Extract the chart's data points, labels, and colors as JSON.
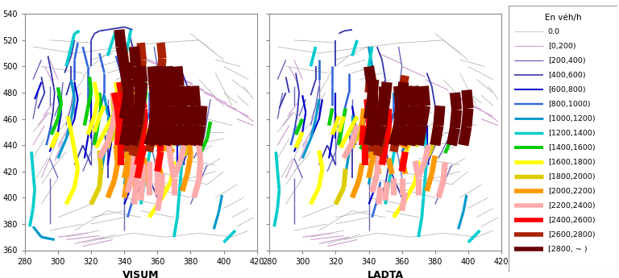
{
  "title_left": "VISUM",
  "title_right": "LADTA",
  "legend_title": "En véh/h",
  "xlim": [
    280,
    420
  ],
  "ylim": [
    360,
    540
  ],
  "xticks": [
    280,
    300,
    320,
    340,
    360,
    380,
    400,
    420
  ],
  "yticks": [
    360,
    380,
    400,
    420,
    440,
    460,
    480,
    500,
    520,
    540
  ],
  "bins": [
    {
      "label": "0.0",
      "color": "#aaaaaa",
      "lw": 0.5
    },
    {
      "label": "[0,200)",
      "color": "#cc99cc",
      "lw": 0.8
    },
    {
      "label": "[200,400)",
      "color": "#6666bb",
      "lw": 1.0
    },
    {
      "label": "[400,600)",
      "color": "#3333aa",
      "lw": 1.3
    },
    {
      "label": "[600,800)",
      "color": "#0000cc",
      "lw": 1.6
    },
    {
      "label": "[800,1000)",
      "color": "#3366dd",
      "lw": 1.9
    },
    {
      "label": "[1000,1200)",
      "color": "#0099cc",
      "lw": 2.3
    },
    {
      "label": "[1200,1400)",
      "color": "#00cccc",
      "lw": 2.7
    },
    {
      "label": "[1400,1600)",
      "color": "#00cc00",
      "lw": 3.2
    },
    {
      "label": "[1600,1800)",
      "color": "#ffff00",
      "lw": 3.8
    },
    {
      "label": "[1800,2000)",
      "color": "#ddcc00",
      "lw": 4.3
    },
    {
      "label": "[2000,2200)",
      "color": "#ff9900",
      "lw": 4.8
    },
    {
      "label": "[2200,2400)",
      "color": "#ffaaaa",
      "lw": 5.3
    },
    {
      "label": "[2400,2600)",
      "color": "#ff0000",
      "lw": 6.0
    },
    {
      "label": "[2600,2800)",
      "color": "#aa2200",
      "lw": 7.5
    },
    {
      "label": "[2800, ~ )",
      "color": "#660000",
      "lw": 9.5
    }
  ],
  "background_color": "#ffffff"
}
